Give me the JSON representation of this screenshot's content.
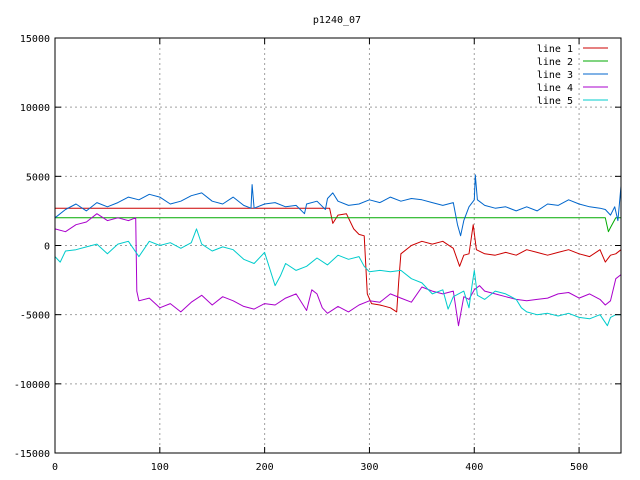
{
  "chart_data": {
    "type": "line",
    "title": "p1240_07",
    "xlabel": "",
    "ylabel": "",
    "xlim": [
      0,
      540
    ],
    "ylim": [
      -15000,
      15000
    ],
    "xticks": [
      0,
      100,
      200,
      300,
      400,
      500
    ],
    "yticks": [
      -15000,
      -10000,
      -5000,
      0,
      5000,
      10000,
      15000
    ],
    "grid": true,
    "legend_position": "top-right",
    "series": [
      {
        "name": "line 1",
        "color": "#cc0000",
        "points": [
          [
            0,
            2700
          ],
          [
            50,
            2700
          ],
          [
            100,
            2700
          ],
          [
            150,
            2700
          ],
          [
            200,
            2700
          ],
          [
            250,
            2700
          ],
          [
            262,
            2700
          ],
          [
            265,
            1600
          ],
          [
            270,
            2200
          ],
          [
            278,
            2300
          ],
          [
            285,
            1200
          ],
          [
            290,
            800
          ],
          [
            295,
            700
          ],
          [
            298,
            -3500
          ],
          [
            302,
            -4200
          ],
          [
            310,
            -4300
          ],
          [
            320,
            -4500
          ],
          [
            326,
            -4800
          ],
          [
            328,
            -2500
          ],
          [
            330,
            -600
          ],
          [
            340,
            0
          ],
          [
            350,
            300
          ],
          [
            360,
            100
          ],
          [
            370,
            300
          ],
          [
            380,
            -200
          ],
          [
            386,
            -1500
          ],
          [
            390,
            -700
          ],
          [
            395,
            -600
          ],
          [
            399,
            1500
          ],
          [
            402,
            -300
          ],
          [
            410,
            -600
          ],
          [
            420,
            -700
          ],
          [
            430,
            -500
          ],
          [
            440,
            -700
          ],
          [
            450,
            -300
          ],
          [
            460,
            -500
          ],
          [
            470,
            -700
          ],
          [
            480,
            -500
          ],
          [
            490,
            -300
          ],
          [
            500,
            -600
          ],
          [
            510,
            -800
          ],
          [
            520,
            -300
          ],
          [
            525,
            -1200
          ],
          [
            530,
            -700
          ],
          [
            535,
            -600
          ],
          [
            540,
            -300
          ]
        ]
      },
      {
        "name": "line 2",
        "color": "#00aa00",
        "points": [
          [
            0,
            2000
          ],
          [
            100,
            2000
          ],
          [
            200,
            2000
          ],
          [
            300,
            2000
          ],
          [
            400,
            2000
          ],
          [
            500,
            2000
          ],
          [
            525,
            2000
          ],
          [
            528,
            1000
          ],
          [
            530,
            1300
          ],
          [
            535,
            2000
          ],
          [
            540,
            2000
          ]
        ]
      },
      {
        "name": "line 3",
        "color": "#0066cc",
        "points": [
          [
            0,
            2000
          ],
          [
            10,
            2600
          ],
          [
            20,
            3000
          ],
          [
            30,
            2500
          ],
          [
            40,
            3100
          ],
          [
            50,
            2800
          ],
          [
            60,
            3100
          ],
          [
            70,
            3500
          ],
          [
            80,
            3300
          ],
          [
            90,
            3700
          ],
          [
            100,
            3500
          ],
          [
            110,
            3000
          ],
          [
            120,
            3200
          ],
          [
            130,
            3600
          ],
          [
            140,
            3800
          ],
          [
            150,
            3200
          ],
          [
            160,
            3000
          ],
          [
            170,
            3500
          ],
          [
            180,
            2900
          ],
          [
            187,
            2700
          ],
          [
            188,
            4400
          ],
          [
            190,
            2700
          ],
          [
            200,
            3000
          ],
          [
            210,
            3100
          ],
          [
            220,
            2800
          ],
          [
            230,
            2900
          ],
          [
            238,
            2300
          ],
          [
            240,
            3000
          ],
          [
            250,
            3200
          ],
          [
            258,
            2600
          ],
          [
            260,
            3400
          ],
          [
            265,
            3800
          ],
          [
            270,
            3200
          ],
          [
            280,
            2900
          ],
          [
            290,
            3000
          ],
          [
            300,
            3300
          ],
          [
            310,
            3100
          ],
          [
            320,
            3500
          ],
          [
            330,
            3200
          ],
          [
            340,
            3400
          ],
          [
            350,
            3300
          ],
          [
            360,
            3100
          ],
          [
            370,
            2900
          ],
          [
            380,
            3100
          ],
          [
            384,
            1500
          ],
          [
            387,
            700
          ],
          [
            390,
            1800
          ],
          [
            395,
            2800
          ],
          [
            400,
            3300
          ],
          [
            401,
            5100
          ],
          [
            403,
            3300
          ],
          [
            410,
            2900
          ],
          [
            420,
            2700
          ],
          [
            430,
            2800
          ],
          [
            440,
            2500
          ],
          [
            450,
            2800
          ],
          [
            460,
            2500
          ],
          [
            470,
            3000
          ],
          [
            480,
            2900
          ],
          [
            490,
            3300
          ],
          [
            500,
            3000
          ],
          [
            510,
            2800
          ],
          [
            520,
            2700
          ],
          [
            525,
            2600
          ],
          [
            530,
            2200
          ],
          [
            534,
            2800
          ],
          [
            537,
            1800
          ],
          [
            540,
            4300
          ]
        ]
      },
      {
        "name": "line 4",
        "color": "#aa00cc",
        "points": [
          [
            0,
            1200
          ],
          [
            10,
            1000
          ],
          [
            20,
            1500
          ],
          [
            30,
            1700
          ],
          [
            40,
            2300
          ],
          [
            50,
            1800
          ],
          [
            60,
            2000
          ],
          [
            70,
            1800
          ],
          [
            77,
            2000
          ],
          [
            78,
            -3300
          ],
          [
            80,
            -4000
          ],
          [
            90,
            -3800
          ],
          [
            100,
            -4500
          ],
          [
            110,
            -4200
          ],
          [
            120,
            -4800
          ],
          [
            130,
            -4100
          ],
          [
            140,
            -3600
          ],
          [
            150,
            -4300
          ],
          [
            160,
            -3700
          ],
          [
            170,
            -4000
          ],
          [
            180,
            -4400
          ],
          [
            190,
            -4600
          ],
          [
            200,
            -4200
          ],
          [
            210,
            -4300
          ],
          [
            220,
            -3800
          ],
          [
            230,
            -3500
          ],
          [
            240,
            -4700
          ],
          [
            245,
            -3200
          ],
          [
            250,
            -3500
          ],
          [
            255,
            -4500
          ],
          [
            260,
            -4900
          ],
          [
            270,
            -4400
          ],
          [
            280,
            -4800
          ],
          [
            290,
            -4300
          ],
          [
            300,
            -4000
          ],
          [
            310,
            -4100
          ],
          [
            320,
            -3500
          ],
          [
            330,
            -3800
          ],
          [
            340,
            -4100
          ],
          [
            350,
            -3000
          ],
          [
            360,
            -3300
          ],
          [
            370,
            -3500
          ],
          [
            380,
            -3300
          ],
          [
            385,
            -5800
          ],
          [
            390,
            -3700
          ],
          [
            395,
            -3900
          ],
          [
            400,
            -3200
          ],
          [
            405,
            -2900
          ],
          [
            410,
            -3300
          ],
          [
            420,
            -3500
          ],
          [
            430,
            -3700
          ],
          [
            440,
            -3900
          ],
          [
            450,
            -4000
          ],
          [
            460,
            -3900
          ],
          [
            470,
            -3800
          ],
          [
            480,
            -3500
          ],
          [
            490,
            -3400
          ],
          [
            500,
            -3800
          ],
          [
            510,
            -3500
          ],
          [
            520,
            -3900
          ],
          [
            525,
            -4300
          ],
          [
            530,
            -4000
          ],
          [
            535,
            -2400
          ],
          [
            540,
            -2100
          ]
        ]
      },
      {
        "name": "line 5",
        "color": "#00cccc",
        "points": [
          [
            0,
            -800
          ],
          [
            5,
            -1200
          ],
          [
            10,
            -400
          ],
          [
            20,
            -300
          ],
          [
            30,
            -100
          ],
          [
            40,
            100
          ],
          [
            50,
            -600
          ],
          [
            60,
            100
          ],
          [
            70,
            300
          ],
          [
            80,
            -800
          ],
          [
            90,
            300
          ],
          [
            100,
            0
          ],
          [
            110,
            200
          ],
          [
            120,
            -200
          ],
          [
            130,
            200
          ],
          [
            135,
            1200
          ],
          [
            140,
            100
          ],
          [
            150,
            -400
          ],
          [
            160,
            -100
          ],
          [
            170,
            -300
          ],
          [
            180,
            -1000
          ],
          [
            190,
            -1300
          ],
          [
            200,
            -500
          ],
          [
            210,
            -2900
          ],
          [
            215,
            -2200
          ],
          [
            220,
            -1300
          ],
          [
            230,
            -1800
          ],
          [
            240,
            -1500
          ],
          [
            250,
            -900
          ],
          [
            260,
            -1400
          ],
          [
            270,
            -700
          ],
          [
            280,
            -1000
          ],
          [
            290,
            -800
          ],
          [
            295,
            -1500
          ],
          [
            300,
            -1900
          ],
          [
            310,
            -1800
          ],
          [
            320,
            -1900
          ],
          [
            330,
            -1800
          ],
          [
            340,
            -2400
          ],
          [
            350,
            -2700
          ],
          [
            360,
            -3500
          ],
          [
            370,
            -3200
          ],
          [
            375,
            -4600
          ],
          [
            380,
            -3700
          ],
          [
            390,
            -3300
          ],
          [
            395,
            -4500
          ],
          [
            398,
            -2800
          ],
          [
            400,
            -1800
          ],
          [
            403,
            -3600
          ],
          [
            410,
            -3900
          ],
          [
            420,
            -3300
          ],
          [
            430,
            -3500
          ],
          [
            440,
            -3900
          ],
          [
            445,
            -4500
          ],
          [
            450,
            -4800
          ],
          [
            460,
            -5000
          ],
          [
            470,
            -4900
          ],
          [
            480,
            -5100
          ],
          [
            490,
            -4900
          ],
          [
            500,
            -5200
          ],
          [
            510,
            -5300
          ],
          [
            520,
            -5000
          ],
          [
            527,
            -5800
          ],
          [
            530,
            -5200
          ],
          [
            535,
            -5000
          ],
          [
            540,
            -5000
          ]
        ]
      }
    ]
  }
}
